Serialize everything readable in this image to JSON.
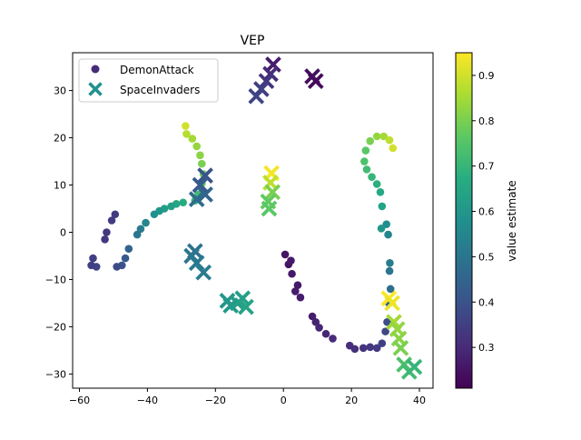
{
  "chart_data": {
    "type": "scatter",
    "title": "VEP",
    "xlabel": "",
    "ylabel": "",
    "xlim": [
      -62,
      44
    ],
    "ylim": [
      -33,
      38
    ],
    "xticks": [
      -60,
      -40,
      -20,
      0,
      20,
      40
    ],
    "yticks": [
      -30,
      -20,
      -10,
      0,
      10,
      20,
      30
    ],
    "grid": false,
    "legend": {
      "position": "top-left",
      "entries": [
        "DemonAttack",
        "SpaceInvaders"
      ]
    },
    "colorbar": {
      "label": "value estimate",
      "range": [
        0.21,
        0.95
      ],
      "ticks": [
        0.3,
        0.4,
        0.5,
        0.6,
        0.7,
        0.8,
        0.9
      ],
      "colormap": "viridis"
    },
    "series": [
      {
        "name": "DemonAttack",
        "marker": "circle",
        "points": [
          [
            -28.8,
            22.5,
            0.9
          ],
          [
            -28.5,
            20.8,
            0.87
          ],
          [
            -26.8,
            19.8,
            0.85
          ],
          [
            -25.5,
            18.2,
            0.83
          ],
          [
            -24.5,
            16.3,
            0.82
          ],
          [
            -24.0,
            14.5,
            0.8
          ],
          [
            -23.5,
            12.3,
            0.78
          ],
          [
            -24.0,
            10.3,
            0.76
          ],
          [
            -25.0,
            8.0,
            0.72
          ],
          [
            -26.0,
            6.7,
            0.7
          ],
          [
            -29.5,
            6.3,
            0.67
          ],
          [
            -31.5,
            6.0,
            0.65
          ],
          [
            -33.0,
            5.5,
            0.63
          ],
          [
            -35.0,
            5.0,
            0.62
          ],
          [
            -36.5,
            4.5,
            0.6
          ],
          [
            -38.0,
            3.8,
            0.58
          ],
          [
            -40.5,
            2.0,
            0.55
          ],
          [
            -42.0,
            0.7,
            0.52
          ],
          [
            -43.0,
            -0.5,
            0.5
          ],
          [
            -45.5,
            -3.5,
            0.45
          ],
          [
            -46.5,
            -5.5,
            0.42
          ],
          [
            -47.5,
            -7.0,
            0.4
          ],
          [
            -49.0,
            -7.3,
            0.38
          ],
          [
            -55.0,
            -7.3,
            0.36
          ],
          [
            -56.5,
            -7.0,
            0.35
          ],
          [
            -56.0,
            -5.5,
            0.35
          ],
          [
            -52.5,
            -1.5,
            0.33
          ],
          [
            -52.0,
            0.0,
            0.33
          ],
          [
            -50.5,
            2.5,
            0.34
          ],
          [
            -49.5,
            3.8,
            0.34
          ],
          [
            0.5,
            -4.7,
            0.25
          ],
          [
            1.5,
            -6.8,
            0.25
          ],
          [
            2.2,
            -6.0,
            0.26
          ],
          [
            2.5,
            -8.8,
            0.26
          ],
          [
            4.2,
            -11.2,
            0.26
          ],
          [
            3.5,
            -12.5,
            0.27
          ],
          [
            5.0,
            -13.8,
            0.27
          ],
          [
            8.5,
            -17.8,
            0.27
          ],
          [
            9.5,
            -19.0,
            0.28
          ],
          [
            10.5,
            -20.2,
            0.29
          ],
          [
            12.5,
            -21.5,
            0.29
          ],
          [
            14.5,
            -22.5,
            0.3
          ],
          [
            19.5,
            -24.0,
            0.31
          ],
          [
            21.0,
            -24.7,
            0.31
          ],
          [
            23.5,
            -24.5,
            0.32
          ],
          [
            25.5,
            -24.3,
            0.33
          ],
          [
            27.5,
            -24.5,
            0.34
          ],
          [
            29.0,
            -23.5,
            0.35
          ],
          [
            30.0,
            -21.0,
            0.37
          ],
          [
            30.5,
            -19.0,
            0.38
          ],
          [
            31.0,
            -15.0,
            0.45
          ],
          [
            31.5,
            -12.0,
            0.48
          ],
          [
            31.2,
            -8.2,
            0.5
          ],
          [
            31.3,
            -6.5,
            0.52
          ],
          [
            30.8,
            -0.5,
            0.55
          ],
          [
            30.3,
            1.7,
            0.58
          ],
          [
            28.8,
            0.8,
            0.6
          ],
          [
            29.0,
            5.5,
            0.64
          ],
          [
            28.5,
            8.5,
            0.66
          ],
          [
            27.5,
            10.2,
            0.68
          ],
          [
            26.0,
            11.7,
            0.7
          ],
          [
            24.5,
            13.3,
            0.72
          ],
          [
            23.8,
            15.0,
            0.74
          ],
          [
            24.2,
            17.3,
            0.76
          ],
          [
            25.5,
            19.3,
            0.8
          ],
          [
            27.5,
            20.3,
            0.83
          ],
          [
            29.5,
            20.3,
            0.85
          ],
          [
            31.2,
            19.5,
            0.88
          ],
          [
            32.2,
            17.8,
            0.9
          ]
        ]
      },
      {
        "name": "SpaceInvaders",
        "marker": "x",
        "points": [
          [
            -3.0,
            35.5,
            0.27
          ],
          [
            -3.8,
            33.5,
            0.3
          ],
          [
            -5.0,
            32.0,
            0.33
          ],
          [
            -6.5,
            30.3,
            0.35
          ],
          [
            -8.0,
            28.8,
            0.36
          ],
          [
            8.5,
            33.0,
            0.24
          ],
          [
            9.5,
            32.0,
            0.23
          ],
          [
            -3.5,
            12.5,
            0.94
          ],
          [
            -3.8,
            10.5,
            0.88
          ],
          [
            -3.2,
            8.5,
            0.8
          ],
          [
            -4.5,
            6.5,
            0.77
          ],
          [
            -4.2,
            5.0,
            0.76
          ],
          [
            -23.0,
            12.0,
            0.4
          ],
          [
            -24.5,
            10.0,
            0.42
          ],
          [
            -23.0,
            8.0,
            0.45
          ],
          [
            -25.5,
            7.0,
            0.47
          ],
          [
            -26.0,
            -4.0,
            0.49
          ],
          [
            -27.0,
            -5.0,
            0.5
          ],
          [
            -25.5,
            -6.5,
            0.51
          ],
          [
            -23.5,
            -8.5,
            0.52
          ],
          [
            -16.5,
            -14.5,
            0.6
          ],
          [
            -15.5,
            -15.5,
            0.61
          ],
          [
            -13.5,
            -15.0,
            0.62
          ],
          [
            -12.0,
            -14.0,
            0.63
          ],
          [
            -11.0,
            -15.8,
            0.64
          ],
          [
            31.0,
            -14.0,
            0.95
          ],
          [
            32.0,
            -15.0,
            0.93
          ],
          [
            32.5,
            -19.0,
            0.85
          ],
          [
            33.5,
            -20.5,
            0.83
          ],
          [
            34.0,
            -22.5,
            0.82
          ],
          [
            34.5,
            -24.5,
            0.8
          ],
          [
            35.5,
            -28.0,
            0.74
          ],
          [
            37.0,
            -29.5,
            0.72
          ],
          [
            38.5,
            -28.5,
            0.7
          ]
        ]
      }
    ]
  },
  "legend_colors": {
    "DemonAttack": "#472c7a",
    "SpaceInvaders": "#21918c"
  }
}
